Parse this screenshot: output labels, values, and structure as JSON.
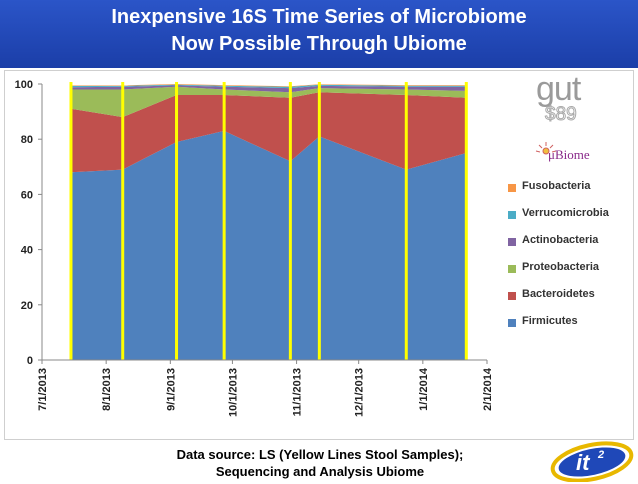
{
  "header": {
    "title_line1": "Inexpensive 16S Time Series of Microbiome",
    "title_line2": "Now Possible Through Ubiome"
  },
  "brand": {
    "gut": "gut",
    "price": "$89",
    "ubiome": "μBiome"
  },
  "footer": {
    "source_line1": "Data source: LS (Yellow Lines Stool Samples);",
    "source_line2": "Sequencing and Analysis Ubiome"
  },
  "colors": {
    "Firmicutes": "#4f81bd",
    "Bacteroidetes": "#c0504d",
    "Proteobacteria": "#9bbb59",
    "Actinobacteria": "#8064a2",
    "Verrucomicrobia": "#4bacc6",
    "Fusobacteria": "#f79646",
    "sample_line": "#ffff00",
    "banner": "#1f48b8"
  },
  "chart_data": {
    "type": "area",
    "stacked": true,
    "x_type": "date",
    "xlim": [
      "2013-07-01",
      "2014-02-01"
    ],
    "ylim": [
      0,
      100
    ],
    "yticks": [
      0,
      20,
      40,
      60,
      80,
      100
    ],
    "xtick_labels": [
      "7/1/2013",
      "8/1/2013",
      "9/1/2013",
      "10/1/2013",
      "11/1/2013",
      "12/1/2013",
      "1/1/2014",
      "2/1/2014"
    ],
    "xtick_dates": [
      "2013-07-01",
      "2013-08-01",
      "2013-09-01",
      "2013-10-01",
      "2013-11-01",
      "2013-12-01",
      "2014-01-01",
      "2014-02-01"
    ],
    "grid": false,
    "legend_position": "right",
    "x": [
      "2013-07-15",
      "2013-08-09",
      "2013-09-04",
      "2013-09-27",
      "2013-10-29",
      "2013-11-12",
      "2013-12-24",
      "2014-01-22"
    ],
    "series": [
      {
        "name": "Firmicutes",
        "values": [
          68,
          69,
          79,
          83,
          72,
          81,
          69,
          75
        ]
      },
      {
        "name": "Bacteroidetes",
        "values": [
          23,
          19,
          17,
          13,
          23,
          16,
          27,
          20
        ]
      },
      {
        "name": "Proteobacteria",
        "values": [
          7,
          10,
          3,
          2,
          2,
          1.5,
          2,
          2.5
        ]
      },
      {
        "name": "Actinobacteria",
        "values": [
          0.8,
          1,
          0.5,
          1,
          1.5,
          0.8,
          1,
          1.5
        ]
      },
      {
        "name": "Verrucomicrobia",
        "values": [
          0.5,
          0.3,
          0.3,
          0.4,
          0.5,
          0.4,
          0.4,
          0.4
        ]
      },
      {
        "name": "Fusobacteria",
        "values": [
          0.2,
          0.2,
          0.2,
          0.2,
          0.2,
          0.2,
          0.2,
          0.2
        ]
      }
    ],
    "legend_order": [
      "Fusobacteria",
      "Verrucomicrobia",
      "Actinobacteria",
      "Proteobacteria",
      "Bacteroidetes",
      "Firmicutes"
    ],
    "sample_dates": [
      "2013-07-15",
      "2013-08-09",
      "2013-09-04",
      "2013-09-27",
      "2013-10-29",
      "2013-11-12",
      "2013-12-24",
      "2014-01-22"
    ]
  }
}
